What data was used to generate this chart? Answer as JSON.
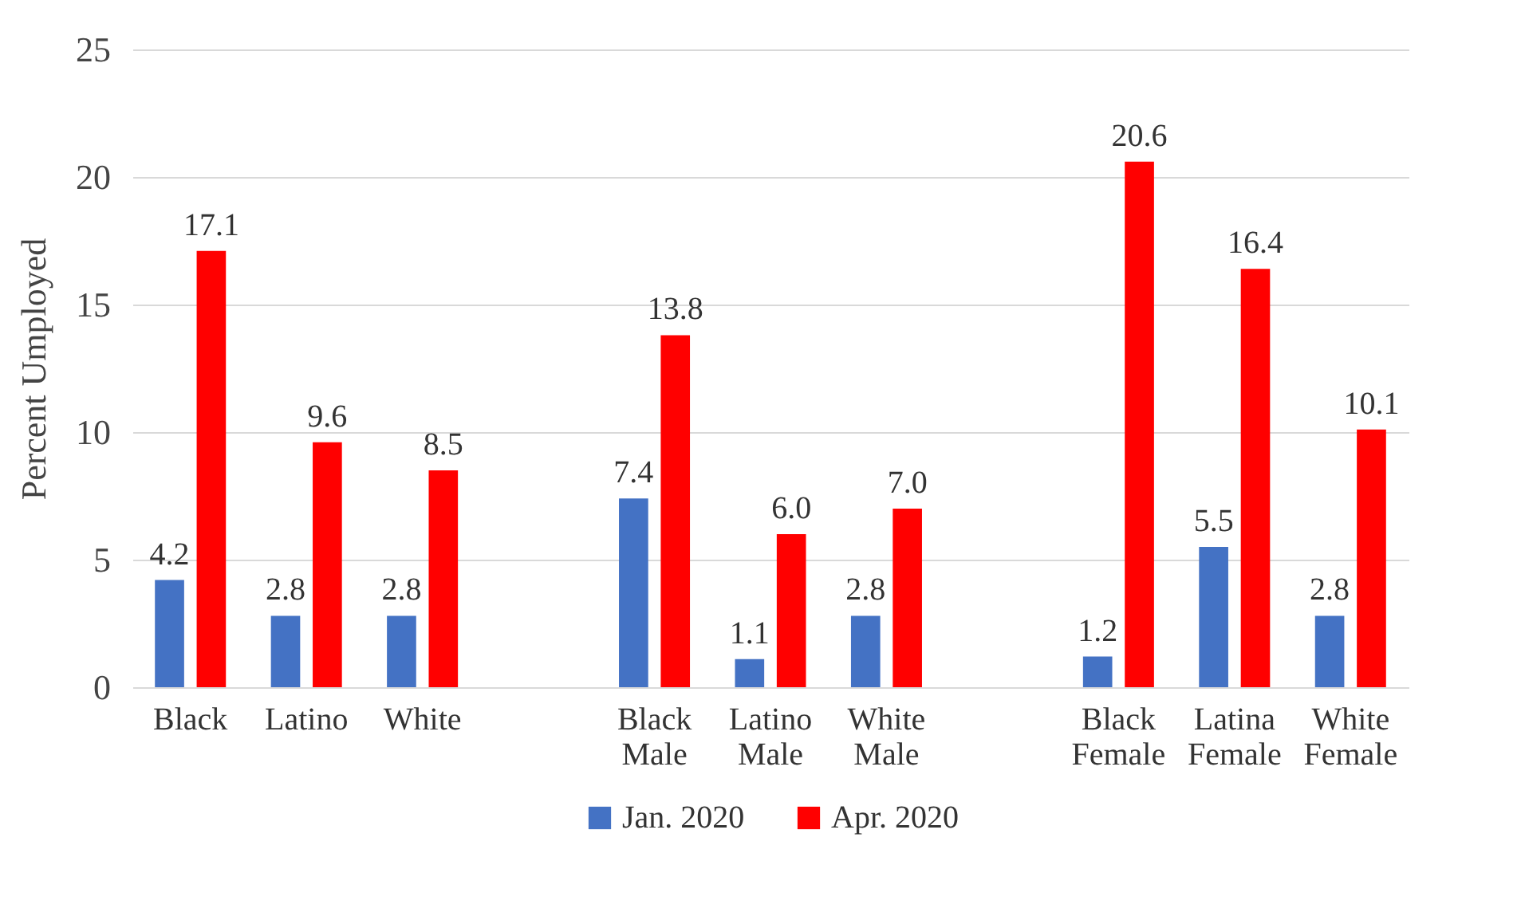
{
  "chart_data": {
    "type": "bar",
    "ylabel": "Percent Umployed",
    "categories": [
      "Black",
      "Latino",
      "White",
      null,
      "Black Male",
      "Latino Male",
      "White Male",
      null,
      "Black Female",
      "Latina Female",
      "White Female"
    ],
    "series": [
      {
        "name": "Jan. 2020",
        "color": "#4472c4",
        "values": [
          4.2,
          2.8,
          2.8,
          null,
          7.4,
          1.1,
          2.8,
          null,
          1.2,
          5.5,
          2.8
        ],
        "value_labels": [
          "4.2",
          "2.8",
          "2.8",
          null,
          "7.4",
          "1.1",
          "2.8",
          null,
          "1.2",
          "5.5",
          "2.8"
        ]
      },
      {
        "name": "Apr. 2020",
        "color": "#ff0000",
        "values": [
          17.1,
          9.6,
          8.5,
          null,
          13.8,
          6,
          7,
          null,
          20.6,
          16.4,
          10.1
        ],
        "value_labels": [
          "17.1",
          "9.6",
          "8.5",
          null,
          "13.8",
          "6.0",
          "7.0",
          null,
          "20.6",
          "16.4",
          "10.1"
        ]
      }
    ],
    "ylim": [
      0,
      25
    ],
    "yticks": [
      0,
      5,
      10,
      15,
      20,
      25
    ],
    "grid": "y",
    "legend": "bottom"
  }
}
